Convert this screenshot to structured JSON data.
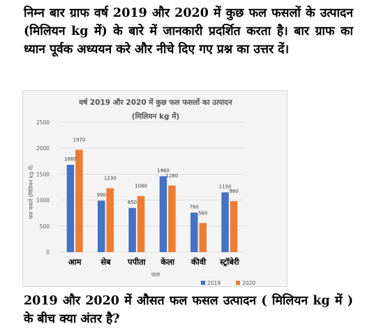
{
  "question": {
    "intro": "निम्न बार ग्राफ वर्ष 2019 और 2020 में कुछ फल फसलों के उत्पादन (मिलियन kg में) के बारे में जानकारी प्रदर्शित करता है। बार ग्राफ का ध्यान पूर्वक अध्ययन करे और नीचे दिए गए प्रश्न का उत्तर दें।",
    "text": "2019 और 2020 में औसत फल फसल उत्पादन ( मिलियन kg में ) के बीच क्या अंतर है?"
  },
  "chart_data": {
    "type": "bar",
    "title": "वर्ष 2019 और 2020 में कुछ फल फसलों का उत्पादन",
    "subtitle": "(मिलियन kg में)",
    "xlabel": "फल",
    "ylabel": "फल फसलें (मिलियन kg में)",
    "categories": [
      "आम",
      "सेब",
      "पपीता",
      "केला",
      "कीवी",
      "स्ट्रॉबेरी"
    ],
    "series": [
      {
        "name": "2019",
        "color": "#4472c4",
        "values": [
          1680,
          990,
          850,
          1460,
          760,
          1150
        ]
      },
      {
        "name": "2020",
        "color": "#ed7d31",
        "values": [
          1970,
          1230,
          1080,
          1280,
          560,
          980
        ]
      }
    ],
    "ylim": [
      0,
      2500
    ],
    "yticks": [
      0,
      500,
      1000,
      1500,
      2000,
      2500
    ],
    "grid": true,
    "legend": "bottom-right"
  }
}
